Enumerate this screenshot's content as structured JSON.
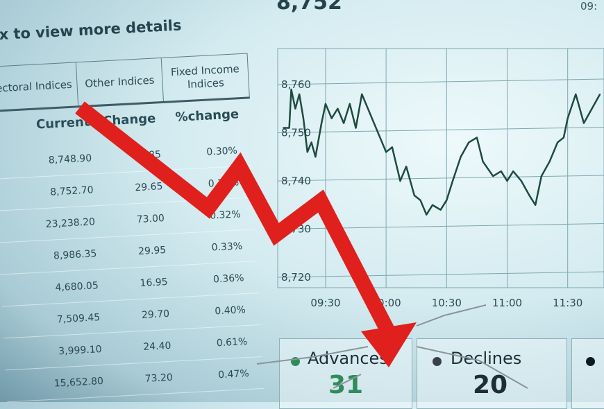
{
  "header": {
    "hint": "x to view more details",
    "index_value": "8,752",
    "top_time": "09:"
  },
  "table": {
    "tabs": [
      "ectoral Indices",
      "Other Indices",
      "Fixed Income Indices"
    ],
    "columns": [
      "Current",
      "Change",
      "%change"
    ],
    "rows": [
      [
        "8,748.90",
        "25.85",
        "0.30%"
      ],
      [
        "8,752.70",
        "29.65",
        "0.34%"
      ],
      [
        "23,238.20",
        "73.00",
        "0.32%"
      ],
      [
        "8,986.35",
        "29.95",
        "0.33%"
      ],
      [
        "4,680.05",
        "16.95",
        "0.36%"
      ],
      [
        "7,509.45",
        "29.70",
        "0.40%"
      ],
      [
        "3,999.10",
        "24.40",
        "0.61%"
      ],
      [
        "15,652.80",
        "73.20",
        "0.47%"
      ]
    ]
  },
  "panels": {
    "advances": {
      "label": "Advances",
      "value": "31",
      "dot_color": "#2e8b5a"
    },
    "declines": {
      "label": "Declines",
      "value": "20",
      "dot_color": "#3a3f4a"
    }
  },
  "colors": {
    "arrow": "#e0201c",
    "line": "#1e4a3f",
    "grid": "#7fa6b0"
  },
  "chart_data": {
    "type": "line",
    "y_ticks": [
      "8,720",
      "8,730",
      "8,740",
      "8,750",
      "8,760"
    ],
    "x_ticks": [
      "09:30",
      "10:00",
      "10:30",
      "11:00",
      "11:30"
    ],
    "ylim": [
      8720,
      8765
    ],
    "xlim": [
      "09:08",
      "11:48"
    ],
    "grid": true,
    "x": [
      "09:09",
      "09:12",
      "09:13",
      "09:15",
      "09:17",
      "09:19",
      "09:21",
      "09:23",
      "09:25",
      "09:28",
      "09:30",
      "09:33",
      "09:36",
      "09:39",
      "09:42",
      "09:45",
      "09:48",
      "09:52",
      "09:56",
      "10:00",
      "10:03",
      "10:07",
      "10:10",
      "10:14",
      "10:17",
      "10:20",
      "10:23",
      "10:27",
      "10:30",
      "10:33",
      "10:37",
      "10:41",
      "10:45",
      "10:48",
      "10:53",
      "10:57",
      "11:00",
      "11:03",
      "11:07",
      "11:11",
      "11:14",
      "11:17",
      "11:21",
      "11:25",
      "11:28",
      "11:30",
      "11:34",
      "11:38",
      "11:42",
      "11:46"
    ],
    "values": [
      8751,
      8751,
      8759,
      8755,
      8758,
      8753,
      8746,
      8748,
      8745,
      8752,
      8756,
      8753,
      8755,
      8752,
      8756,
      8751,
      8758,
      8754,
      8750,
      8746,
      8747,
      8740,
      8743,
      8737,
      8736,
      8733,
      8735,
      8734,
      8736,
      8740,
      8745,
      8748,
      8749,
      8744,
      8741,
      8742,
      8740,
      8742,
      8740,
      8737,
      8735,
      8741,
      8744,
      8748,
      8749,
      8753,
      8758,
      8752,
      8755,
      8758
    ]
  }
}
